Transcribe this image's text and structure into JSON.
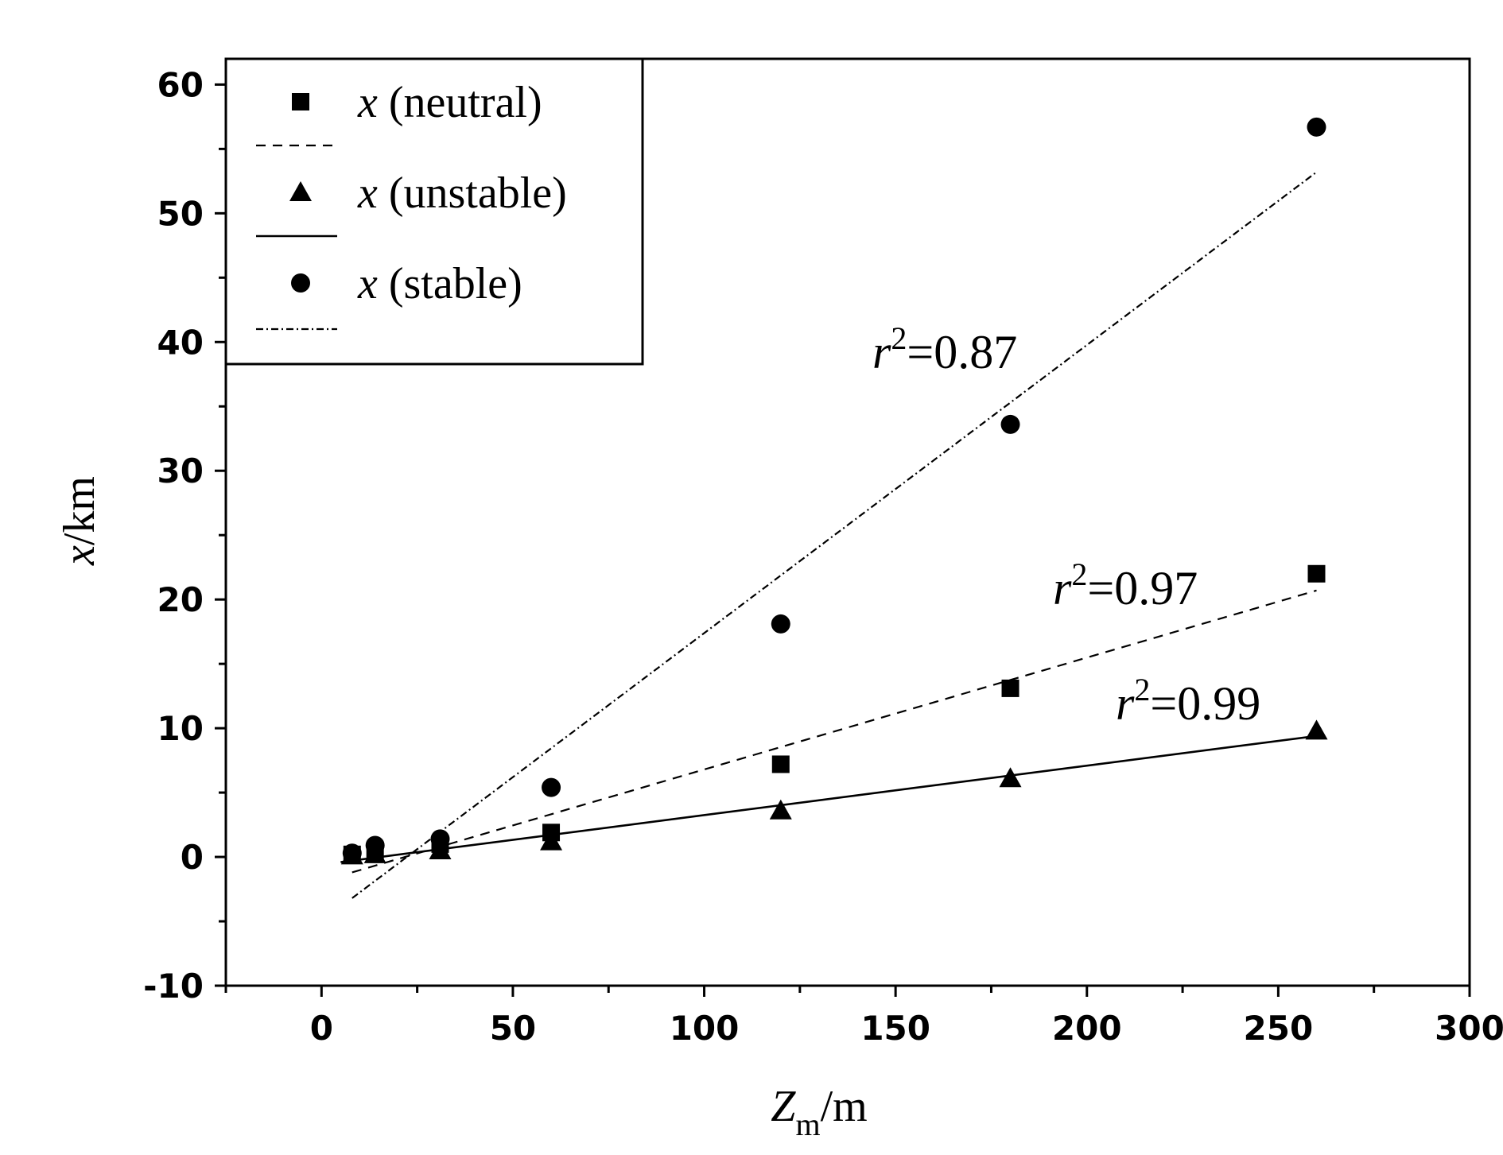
{
  "chart_data": {
    "type": "scatter",
    "title": "",
    "xlabel": {
      "main": "Z",
      "sub": "m",
      "unit": "/m"
    },
    "ylabel": {
      "var": "x",
      "unit": "/km"
    },
    "xlim": [
      -25,
      300
    ],
    "ylim": [
      -10,
      62
    ],
    "x_ticks": [
      0,
      50,
      100,
      150,
      200,
      250,
      300
    ],
    "y_ticks": [
      -10,
      0,
      10,
      20,
      30,
      40,
      50,
      60
    ],
    "x_tick_labels": [
      "0",
      "50",
      "100",
      "150",
      "200",
      "250",
      "300"
    ],
    "y_tick_labels": [
      "-10",
      "0",
      "10",
      "20",
      "30",
      "40",
      "50",
      "60"
    ],
    "grid": false,
    "legend_position": "top-left",
    "series": [
      {
        "name": "x (neutral)",
        "var": "x",
        "label": "(neutral)",
        "marker": "square",
        "line_style": "dashed",
        "x": [
          8,
          14,
          31,
          60,
          120,
          180,
          260
        ],
        "y": [
          0.2,
          0.5,
          1.0,
          1.9,
          7.2,
          13.1,
          22.0
        ],
        "fit": {
          "x": [
            8,
            260
          ],
          "y": [
            -1.2,
            20.7
          ]
        },
        "r2_prefix": "r",
        "r2_exp": "2",
        "r2_value": "=0.97"
      },
      {
        "name": "x (unstable)",
        "var": "x",
        "label": "(unstable)",
        "marker": "triangle",
        "line_style": "solid",
        "x": [
          8,
          14,
          31,
          60,
          120,
          180,
          260
        ],
        "y": [
          0.1,
          0.2,
          0.5,
          1.2,
          3.6,
          6.1,
          9.8
        ],
        "fit": {
          "x": [
            5,
            260
          ],
          "y": [
            -0.4,
            9.4
          ]
        },
        "r2_prefix": "r",
        "r2_exp": "2",
        "r2_value": "=0.99"
      },
      {
        "name": "x (stable)",
        "var": "x",
        "label": "(stable)",
        "marker": "circle",
        "line_style": "dash-dot",
        "x": [
          8,
          14,
          31,
          60,
          120,
          180,
          260
        ],
        "y": [
          0.3,
          0.9,
          1.4,
          5.4,
          18.1,
          33.6,
          56.7
        ],
        "fit": {
          "x": [
            8,
            260
          ],
          "y": [
            -3.2,
            53.2
          ]
        },
        "r2_prefix": "r",
        "r2_exp": "2",
        "r2_value": "=0.87"
      }
    ]
  }
}
